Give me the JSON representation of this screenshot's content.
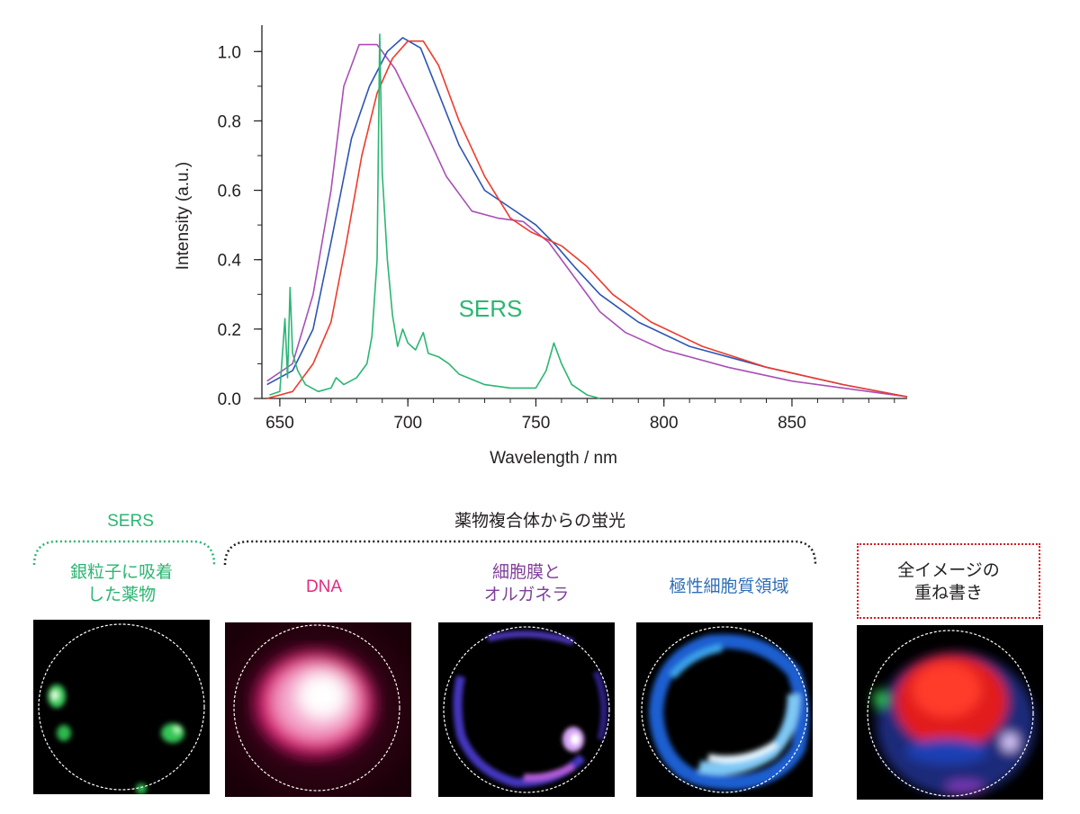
{
  "chart_data": {
    "type": "line",
    "xlabel": "Wavelength / nm",
    "ylabel": "Intensity (a.u.)",
    "xlim": [
      643,
      895
    ],
    "ylim": [
      0.0,
      1.05
    ],
    "x_ticks": [
      "650",
      "700",
      "750",
      "800",
      "850"
    ],
    "y_ticks": [
      "0.0",
      "0.2",
      "0.4",
      "0.6",
      "0.8",
      "1.0"
    ],
    "annotation": "SERS",
    "grid": false,
    "series": [
      {
        "color": "#a94fb5",
        "points": [
          [
            645,
            0.05
          ],
          [
            655,
            0.1
          ],
          [
            663,
            0.3
          ],
          [
            670,
            0.6
          ],
          [
            675,
            0.9
          ],
          [
            681,
            1.02
          ],
          [
            688,
            1.02
          ],
          [
            695,
            0.95
          ],
          [
            705,
            0.8
          ],
          [
            715,
            0.64
          ],
          [
            725,
            0.54
          ],
          [
            735,
            0.52
          ],
          [
            745,
            0.51
          ],
          [
            755,
            0.45
          ],
          [
            765,
            0.35
          ],
          [
            775,
            0.25
          ],
          [
            785,
            0.19
          ],
          [
            800,
            0.14
          ],
          [
            825,
            0.09
          ],
          [
            850,
            0.05
          ],
          [
            870,
            0.03
          ],
          [
            895,
            0.005
          ]
        ]
      },
      {
        "color": "#2c55b2",
        "points": [
          [
            645,
            0.04
          ],
          [
            655,
            0.08
          ],
          [
            663,
            0.2
          ],
          [
            670,
            0.45
          ],
          [
            678,
            0.75
          ],
          [
            685,
            0.9
          ],
          [
            692,
            1.0
          ],
          [
            698,
            1.04
          ],
          [
            705,
            1.01
          ],
          [
            712,
            0.88
          ],
          [
            720,
            0.73
          ],
          [
            730,
            0.6
          ],
          [
            740,
            0.55
          ],
          [
            750,
            0.5
          ],
          [
            758,
            0.44
          ],
          [
            765,
            0.38
          ],
          [
            775,
            0.3
          ],
          [
            790,
            0.22
          ],
          [
            810,
            0.15
          ],
          [
            840,
            0.09
          ],
          [
            870,
            0.04
          ],
          [
            895,
            0.005
          ]
        ]
      },
      {
        "color": "#ee3b2c",
        "points": [
          [
            645,
            0.0
          ],
          [
            655,
            0.02
          ],
          [
            663,
            0.1
          ],
          [
            670,
            0.22
          ],
          [
            676,
            0.45
          ],
          [
            682,
            0.7
          ],
          [
            688,
            0.88
          ],
          [
            694,
            0.98
          ],
          [
            700,
            1.03
          ],
          [
            706,
            1.03
          ],
          [
            712,
            0.96
          ],
          [
            720,
            0.8
          ],
          [
            730,
            0.64
          ],
          [
            740,
            0.52
          ],
          [
            748,
            0.48
          ],
          [
            760,
            0.44
          ],
          [
            770,
            0.38
          ],
          [
            780,
            0.3
          ],
          [
            795,
            0.22
          ],
          [
            815,
            0.15
          ],
          [
            840,
            0.09
          ],
          [
            870,
            0.04
          ],
          [
            895,
            0.005
          ]
        ]
      },
      {
        "color": "#2bb673",
        "points": [
          [
            646,
            0.01
          ],
          [
            650,
            0.02
          ],
          [
            652,
            0.23
          ],
          [
            653,
            0.06
          ],
          [
            654,
            0.32
          ],
          [
            655,
            0.13
          ],
          [
            657,
            0.08
          ],
          [
            660,
            0.04
          ],
          [
            665,
            0.02
          ],
          [
            670,
            0.03
          ],
          [
            672,
            0.06
          ],
          [
            675,
            0.04
          ],
          [
            680,
            0.06
          ],
          [
            684,
            0.1
          ],
          [
            686,
            0.18
          ],
          [
            688,
            0.4
          ],
          [
            689,
            1.05
          ],
          [
            690,
            0.65
          ],
          [
            692,
            0.4
          ],
          [
            694,
            0.24
          ],
          [
            696,
            0.15
          ],
          [
            698,
            0.2
          ],
          [
            700,
            0.16
          ],
          [
            703,
            0.14
          ],
          [
            706,
            0.19
          ],
          [
            708,
            0.13
          ],
          [
            712,
            0.12
          ],
          [
            716,
            0.1
          ],
          [
            720,
            0.07
          ],
          [
            730,
            0.04
          ],
          [
            740,
            0.03
          ],
          [
            750,
            0.03
          ],
          [
            754,
            0.08
          ],
          [
            757,
            0.16
          ],
          [
            760,
            0.1
          ],
          [
            764,
            0.04
          ],
          [
            770,
            0.01
          ],
          [
            775,
            0.0
          ]
        ]
      }
    ]
  },
  "labels": {
    "top_group": "薬物複合体からの蛍光",
    "sers_title": "SERS",
    "sers_sub_1": "銀粒子に吸着",
    "sers_sub_2": "した薬物",
    "dna": "DNA",
    "membrane_1": "細胞膜と",
    "membrane_2": "オルガネラ",
    "polar": "極性細胞質領域",
    "overlay_1": "全イメージの",
    "overlay_2": "重ね書き"
  },
  "colors": {
    "sers": "#2bb673",
    "dna": "#e6287f",
    "membrane": "#7f3f98",
    "polar": "#2f6fb8",
    "overlay_box": "#d71920"
  }
}
